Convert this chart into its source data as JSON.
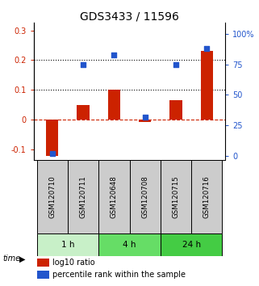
{
  "title": "GDS3433 / 11596",
  "samples": [
    "GSM120710",
    "GSM120711",
    "GSM120648",
    "GSM120708",
    "GSM120715",
    "GSM120716"
  ],
  "log10_ratio": [
    -0.12,
    0.05,
    0.102,
    -0.008,
    0.067,
    0.23
  ],
  "percentile_rank": [
    2,
    75,
    83,
    32,
    75,
    88
  ],
  "groups": [
    {
      "label": "1 h",
      "indices": [
        0,
        1
      ],
      "color": "#c8f0c8"
    },
    {
      "label": "4 h",
      "indices": [
        2,
        3
      ],
      "color": "#66dd66"
    },
    {
      "label": "24 h",
      "indices": [
        4,
        5
      ],
      "color": "#44cc44"
    }
  ],
  "ylim_left": [
    -0.135,
    0.325
  ],
  "ylim_right": [
    -3.5,
    109
  ],
  "yticks_left": [
    -0.1,
    0.0,
    0.1,
    0.2,
    0.3
  ],
  "ytick_labels_left": [
    "-0.1",
    "0",
    "0.1",
    "0.2",
    "0.3"
  ],
  "yticks_right": [
    0,
    25,
    50,
    75,
    100
  ],
  "ytick_labels_right": [
    "0",
    "25",
    "50",
    "75",
    "100%"
  ],
  "hlines": [
    0.1,
    0.2
  ],
  "red_color": "#cc2200",
  "blue_color": "#2255cc",
  "gray_color": "#cccccc",
  "bar_width": 0.4,
  "title_fontsize": 10,
  "tick_fontsize": 7,
  "legend_fontsize": 7
}
